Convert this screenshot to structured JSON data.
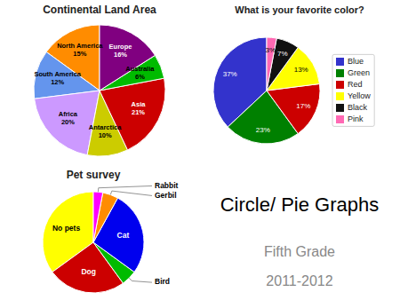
{
  "title": "Circle/ Pie Graphs",
  "subtitle": [
    "Fifth Grade",
    "2011-2012"
  ],
  "chart_data": [
    {
      "type": "pie",
      "title": "Continental Land Area",
      "categories": [
        "North America",
        "South America",
        "Africa",
        "Antarctica",
        "Asia",
        "Australia",
        "Europe"
      ],
      "values": [
        15,
        12,
        20,
        10,
        21,
        6,
        16
      ],
      "value_labels": [
        "15%",
        "12%",
        "20%",
        "10%",
        "21%",
        "6%",
        "16%"
      ],
      "colors": [
        "#FF8C00",
        "#6495ED",
        "#CC99FF",
        "#CCCC00",
        "#CC0000",
        "#00BB00",
        "#800080"
      ],
      "data_labels": true
    },
    {
      "type": "pie",
      "title": "What is your favorite color?",
      "categories": [
        "Blue",
        "Green",
        "Red",
        "Yellow",
        "Black",
        "Pink"
      ],
      "values": [
        37,
        23,
        17,
        13,
        7,
        3
      ],
      "value_labels": [
        "37%",
        "23%",
        "17%",
        "13%",
        "7%",
        "3%"
      ],
      "colors": [
        "#3333CC",
        "#008000",
        "#CC0000",
        "#FFFF00",
        "#111111",
        "#FF69B4"
      ],
      "data_labels": true,
      "legend": "right"
    },
    {
      "type": "pie",
      "title": "Pet survey",
      "categories": [
        "No pets",
        "Dog",
        "Bird",
        "Cat",
        "Gerbil",
        "Rabbit"
      ],
      "values": [
        35,
        25,
        5,
        27,
        5,
        3
      ],
      "colors": [
        "#FFFF00",
        "#CC0000",
        "#00BB00",
        "#0000EE",
        "#FF8C00",
        "#FF00FF"
      ]
    }
  ]
}
